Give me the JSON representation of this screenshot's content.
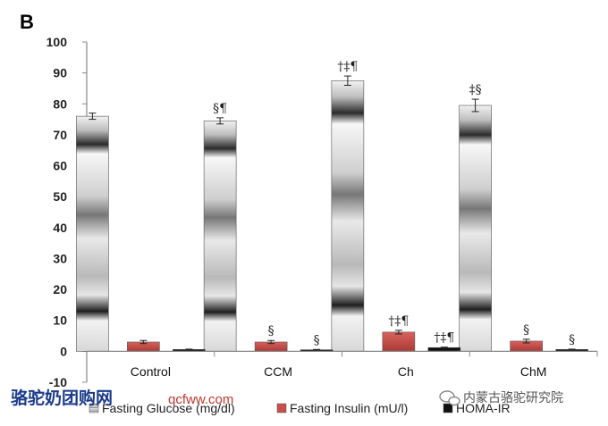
{
  "panel_label": "B",
  "colors": {
    "insulin": "#c8504a",
    "homa": "#111111",
    "axis": "#888888"
  },
  "watermark": {
    "left_text": "骆驼奶团购网",
    "url": "qcfww.com",
    "right_text": "内蒙古骆驼研究院",
    "right_icon": "wechat-icon"
  },
  "chart_data": {
    "type": "bar",
    "title": "",
    "xlabel": "",
    "ylabel": "",
    "ylim": [
      -10,
      100
    ],
    "yticks": [
      "100",
      "90",
      "80",
      "70",
      "60",
      "50",
      "40",
      "30",
      "20",
      "10",
      "0",
      "-10"
    ],
    "categories": [
      "Control",
      "CCM",
      "Ch",
      "ChM"
    ],
    "legend_position": "bottom",
    "grid": false,
    "series": [
      {
        "name": "Fasting Glucose (mg/dl)",
        "values": [
          76,
          74.5,
          87.5,
          79.5
        ],
        "errors": [
          1,
          1,
          1.5,
          2
        ],
        "annotations": [
          "",
          "§¶",
          "†‡¶",
          "‡§"
        ]
      },
      {
        "name": "Fasting Insulin (mU/l)",
        "values": [
          3,
          3,
          6.2,
          3.3
        ],
        "errors": [
          0.5,
          0.5,
          0.6,
          0.6
        ],
        "annotations": [
          "",
          "§",
          "†‡¶",
          "§"
        ]
      },
      {
        "name": "HOMA-IR",
        "values": [
          0.6,
          0.5,
          1.2,
          0.6
        ],
        "errors": [
          0.1,
          0.1,
          0.15,
          0.1
        ],
        "annotations": [
          "",
          "§",
          "†‡¶",
          "§"
        ]
      }
    ]
  }
}
